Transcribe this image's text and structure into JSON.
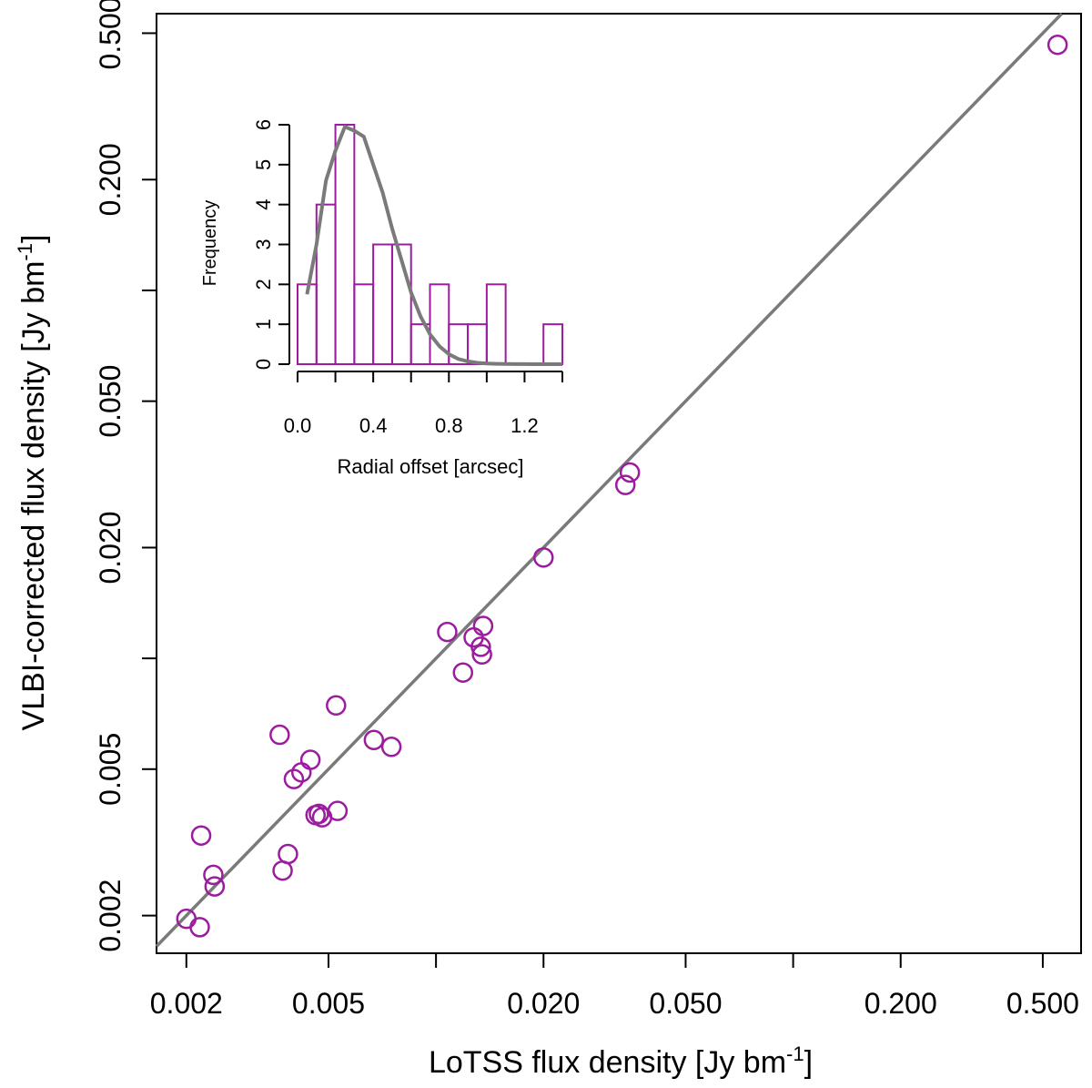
{
  "chart_data": [
    {
      "type": "scatter",
      "title": "",
      "xlabel_main": "LoTSS flux density [Jy bm",
      "xlabel_sup": "-1",
      "xlabel_end": "]",
      "ylabel_main": "VLBI-corrected flux density [Jy bm",
      "ylabel_sup": "-1",
      "ylabel_end": "]",
      "xscale": "log",
      "yscale": "log",
      "xlim": [
        0.00165,
        0.64
      ],
      "ylim": [
        0.00158,
        0.565
      ],
      "xticks": [
        0.002,
        0.005,
        0.01,
        0.02,
        0.05,
        0.1,
        0.2,
        0.5
      ],
      "xtick_labels": [
        "0.002",
        "0.005",
        "",
        "0.020",
        "0.050",
        "",
        "0.200",
        "0.500"
      ],
      "yticks": [
        0.002,
        0.005,
        0.01,
        0.02,
        0.05,
        0.1,
        0.2,
        0.5
      ],
      "ytick_labels": [
        "0.002",
        "0.005",
        "",
        "0.020",
        "0.050",
        "",
        "0.200",
        "0.500"
      ],
      "reference_line": {
        "type": "y=x",
        "color": "#7a7a7a"
      },
      "marker_color": "#9b1c9f",
      "series": [
        {
          "name": "sources",
          "x": [
            0.002,
            0.00218,
            0.0022,
            0.00238,
            0.0024,
            0.00365,
            0.00372,
            0.00385,
            0.004,
            0.0042,
            0.00445,
            0.0046,
            0.0047,
            0.0048,
            0.00525,
            0.0053,
            0.0067,
            0.0075,
            0.01075,
            0.0119,
            0.01275,
            0.01335,
            0.01345,
            0.01355,
            0.02,
            0.0339,
            0.0349,
            0.55
          ],
          "y": [
            0.00196,
            0.00186,
            0.0033,
            0.00258,
            0.0024,
            0.0062,
            0.00265,
            0.00294,
            0.0047,
            0.0049,
            0.0053,
            0.00375,
            0.00378,
            0.0037,
            0.00745,
            0.00385,
            0.006,
            0.00575,
            0.0118,
            0.00915,
            0.0114,
            0.01075,
            0.01025,
            0.01225,
            0.0188,
            0.0296,
            0.032,
            0.465
          ]
        }
      ]
    },
    {
      "type": "histogram",
      "title": "",
      "xlabel": "Radial offset [arcsec]",
      "ylabel": "Frequency",
      "xlim": [
        0.0,
        1.4
      ],
      "ylim": [
        0,
        6
      ],
      "xticks": [
        0.0,
        0.2,
        0.4,
        0.6,
        0.8,
        1.0,
        1.2,
        1.4
      ],
      "xtick_labels": [
        "0.0",
        "",
        "0.4",
        "",
        "0.8",
        "",
        "1.2",
        ""
      ],
      "yticks": [
        0,
        1,
        2,
        3,
        4,
        5,
        6
      ],
      "ytick_labels": [
        "0",
        "1",
        "2",
        "3",
        "4",
        "5",
        "6"
      ],
      "bin_width": 0.1,
      "bin_starts": [
        0.0,
        0.1,
        0.2,
        0.3,
        0.4,
        0.5,
        0.6,
        0.7,
        0.8,
        0.9,
        1.0,
        1.1,
        1.2,
        1.3
      ],
      "counts": [
        2,
        4,
        6,
        2,
        3,
        3,
        1,
        2,
        1,
        1,
        2,
        0,
        0,
        1
      ],
      "bar_color": "#9b1c9f",
      "curve_color": "#7a7a7a",
      "curve": {
        "x": [
          0.05,
          0.1,
          0.15,
          0.2,
          0.25,
          0.3,
          0.35,
          0.4,
          0.45,
          0.5,
          0.55,
          0.6,
          0.65,
          0.7,
          0.75,
          0.8,
          0.85,
          0.9,
          0.95,
          1.0,
          1.05,
          1.1,
          1.15,
          1.2,
          1.25,
          1.3,
          1.35,
          1.4
        ],
        "y": [
          1.75,
          3.0,
          4.6,
          5.35,
          5.95,
          5.85,
          5.7,
          5.0,
          4.3,
          3.4,
          2.6,
          1.8,
          1.2,
          0.75,
          0.45,
          0.25,
          0.13,
          0.07,
          0.035,
          0.018,
          0.009,
          0.005,
          0.003,
          0.002,
          0.001,
          0.001,
          0.0005,
          0.0
        ]
      }
    }
  ]
}
